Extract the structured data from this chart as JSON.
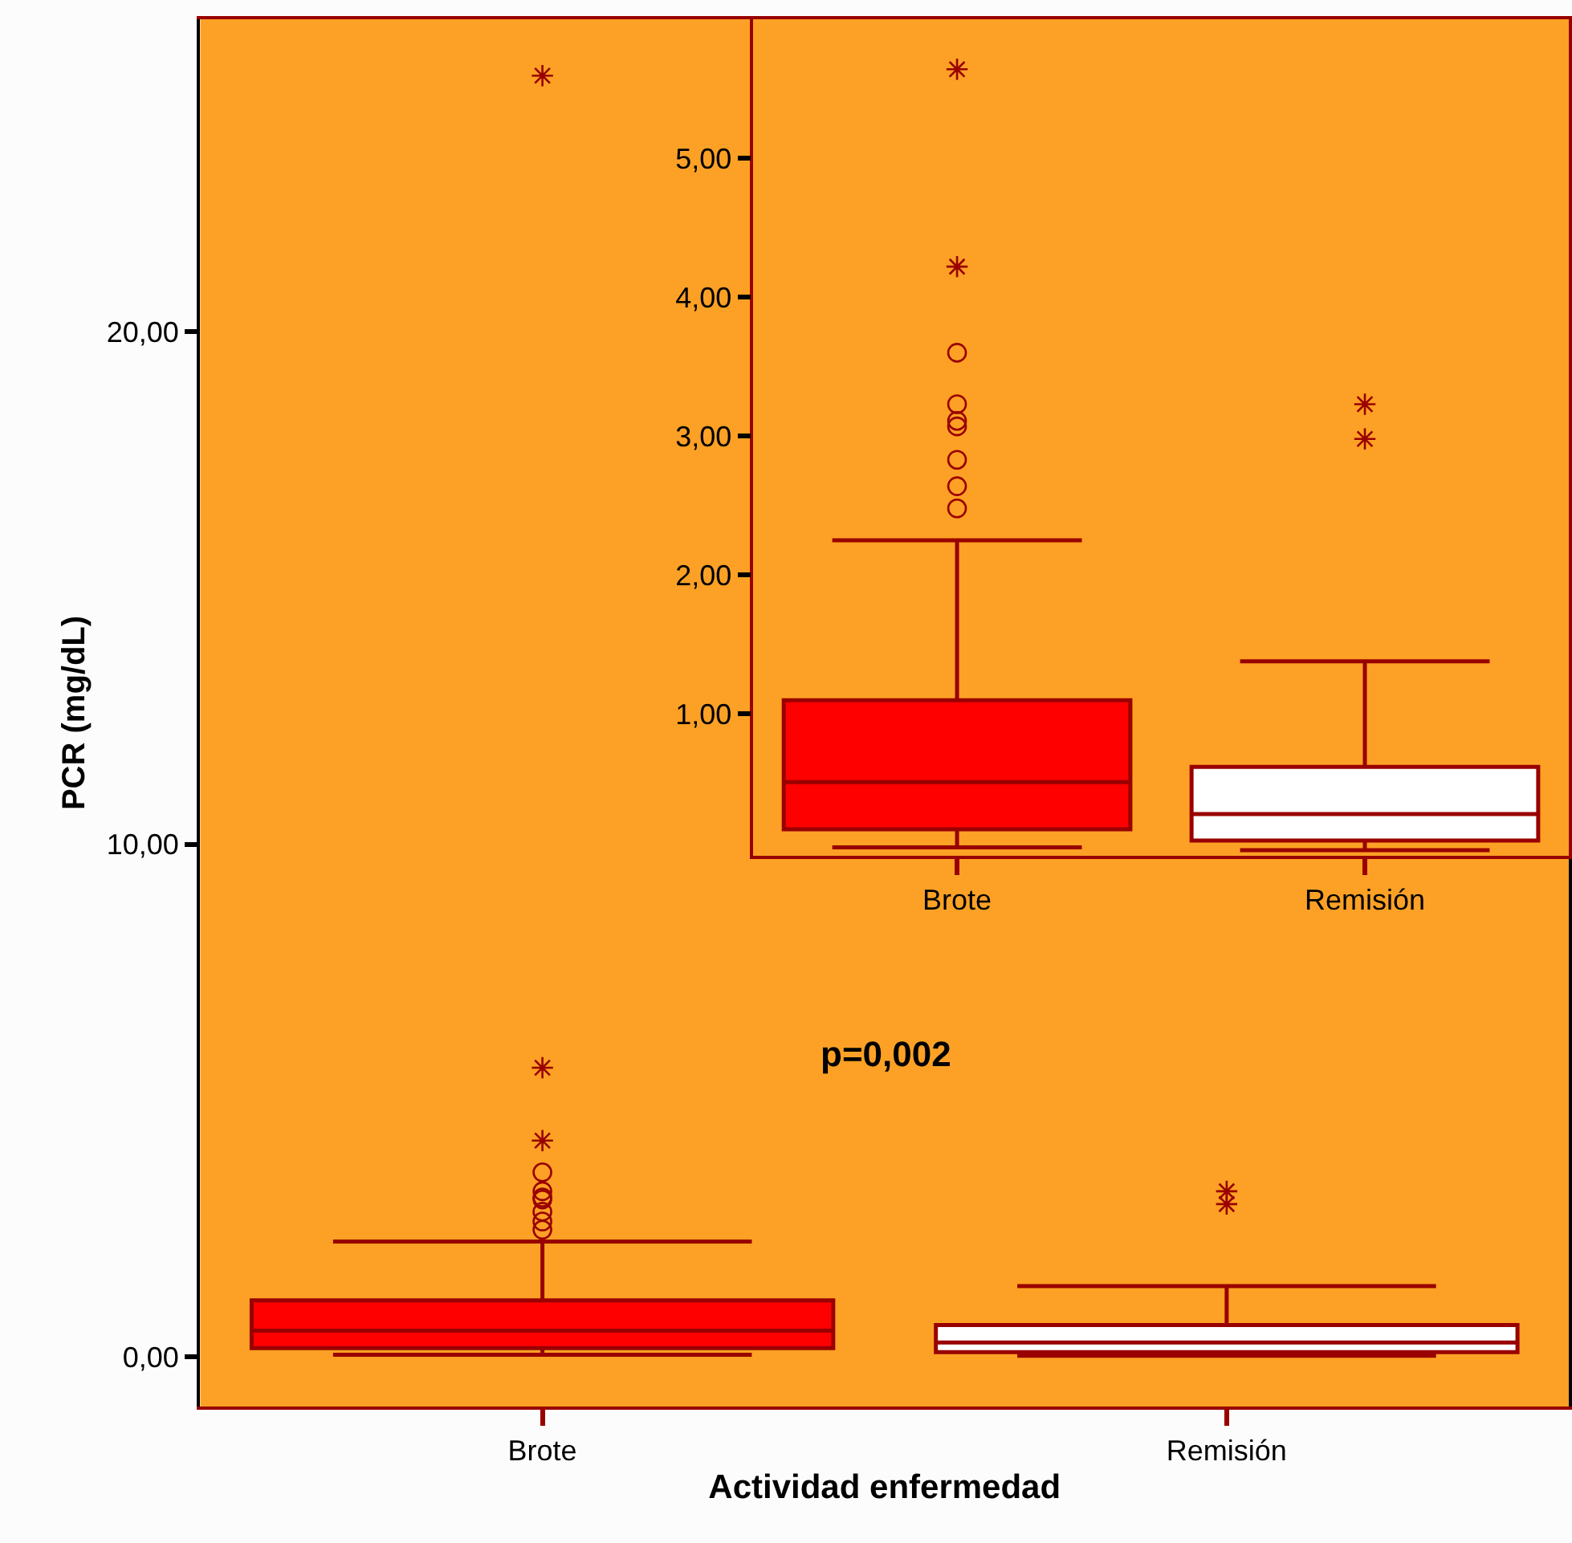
{
  "chart_data": [
    {
      "type": "box",
      "xlabel": "Actividad enfermedad",
      "ylabel": "PCR (mg/dL)",
      "categories": [
        "Brote",
        "Remisión"
      ],
      "colors": [
        "#ff0000",
        "#ffffff"
      ],
      "boxes": [
        {
          "low": 0.04,
          "q1": 0.17,
          "median": 0.51,
          "q3": 1.1,
          "high": 2.25,
          "outliers": [
            2.48,
            2.64,
            2.83,
            3.07,
            3.11,
            3.23,
            3.6,
            4.22,
            5.64,
            25.0
          ]
        },
        {
          "low": 0.02,
          "q1": 0.09,
          "median": 0.28,
          "q3": 0.62,
          "high": 1.38,
          "outliers": [
            2.98,
            3.23
          ]
        }
      ],
      "ylim": [
        -0.97,
        26.1
      ],
      "yticks": [
        {
          "value": 0,
          "label": "0,00"
        },
        {
          "value": 10,
          "label": "10,00"
        },
        {
          "value": 20,
          "label": "20,00"
        }
      ],
      "grid": false,
      "annotations": [
        "p=0,002"
      ]
    },
    {
      "type": "box",
      "categories": [
        "Brote",
        "Remisión"
      ],
      "colors": [
        "#ff0000",
        "#ffffff"
      ],
      "boxes": [
        {
          "low": 0.04,
          "q1": 0.17,
          "median": 0.51,
          "q3": 1.1,
          "high": 2.25,
          "outliers": [
            2.48,
            2.64,
            2.83,
            3.07,
            3.11,
            3.23,
            3.6,
            4.22,
            5.64
          ]
        },
        {
          "low": 0.02,
          "q1": 0.09,
          "median": 0.28,
          "q3": 0.62,
          "high": 1.38,
          "outliers": [
            2.98,
            3.23
          ]
        }
      ],
      "ylim": [
        -0.02,
        6.0
      ],
      "yticks": [
        {
          "value": 1,
          "label": "1,00"
        },
        {
          "value": 2,
          "label": "2,00"
        },
        {
          "value": 3,
          "label": "3,00"
        },
        {
          "value": 4,
          "label": "4,00"
        },
        {
          "value": 5,
          "label": "5,00"
        }
      ],
      "grid": false
    }
  ]
}
